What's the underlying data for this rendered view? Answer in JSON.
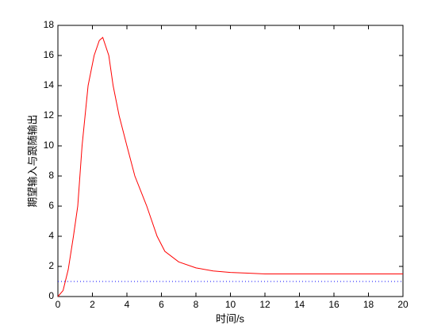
{
  "chart_data": {
    "type": "line",
    "xlabel": "时间/s",
    "ylabel": "期望输入与跟随输出",
    "series": [
      {
        "color": "#ff0000",
        "style": "solid",
        "x": [
          0,
          0.3,
          0.6,
          0.9,
          1.15,
          1.4,
          1.75,
          2.1,
          2.4,
          2.6,
          2.95,
          3.2,
          3.55,
          4,
          4.46,
          5.15,
          5.75,
          6.2,
          7,
          8,
          9,
          10,
          11,
          12,
          14,
          16,
          18,
          20
        ],
        "values": [
          0,
          0.4,
          1.8,
          4,
          6,
          10,
          14,
          16,
          17,
          17.2,
          16,
          14,
          12,
          10,
          8,
          6,
          4,
          3,
          2.3,
          1.9,
          1.7,
          1.6,
          1.55,
          1.5,
          1.5,
          1.5,
          1.5,
          1.5
        ]
      },
      {
        "color": "#0000ff",
        "style": "dotted",
        "x": [
          0,
          20
        ],
        "values": [
          1,
          1
        ]
      }
    ],
    "xlim": [
      0,
      20
    ],
    "xticks": [
      0,
      2,
      4,
      6,
      8,
      10,
      12,
      14,
      16,
      18,
      20
    ],
    "ylim": [
      0,
      18
    ],
    "yticks": [
      0,
      2,
      4,
      6,
      8,
      10,
      12,
      14,
      16,
      18
    ],
    "grid": false
  }
}
